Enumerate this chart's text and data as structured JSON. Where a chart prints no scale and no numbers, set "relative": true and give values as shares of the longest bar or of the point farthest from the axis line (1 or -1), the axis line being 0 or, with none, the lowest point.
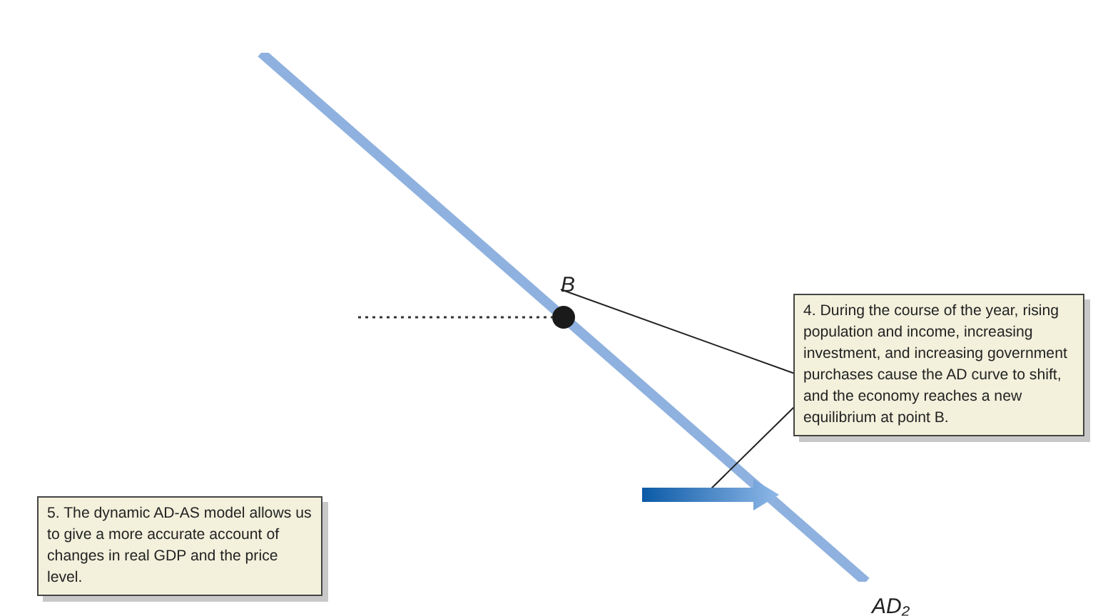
{
  "chart_data": {
    "type": "line",
    "relative": true,
    "categories": [
      null,
      null,
      null
    ],
    "series": [
      {
        "name": "AD₂",
        "color": "#8fb1df",
        "values": [
          1,
          0.5,
          0
        ]
      }
    ],
    "ref_lines": [
      {
        "axis": "y",
        "value": 0.5,
        "line_style": "dotted",
        "color": "#333333"
      }
    ],
    "annotations": [
      {
        "text": "B",
        "y": 0.5
      },
      "4.  During the course of the year, rising population and income, increasing investment, and increasing government purchases cause the AD curve to shift, and the economy reaches a new equilibrium at point B.",
      "5.  The dynamic AD-AS model allows us to give a more accurate account of changes in real GDP and the price level."
    ]
  }
}
